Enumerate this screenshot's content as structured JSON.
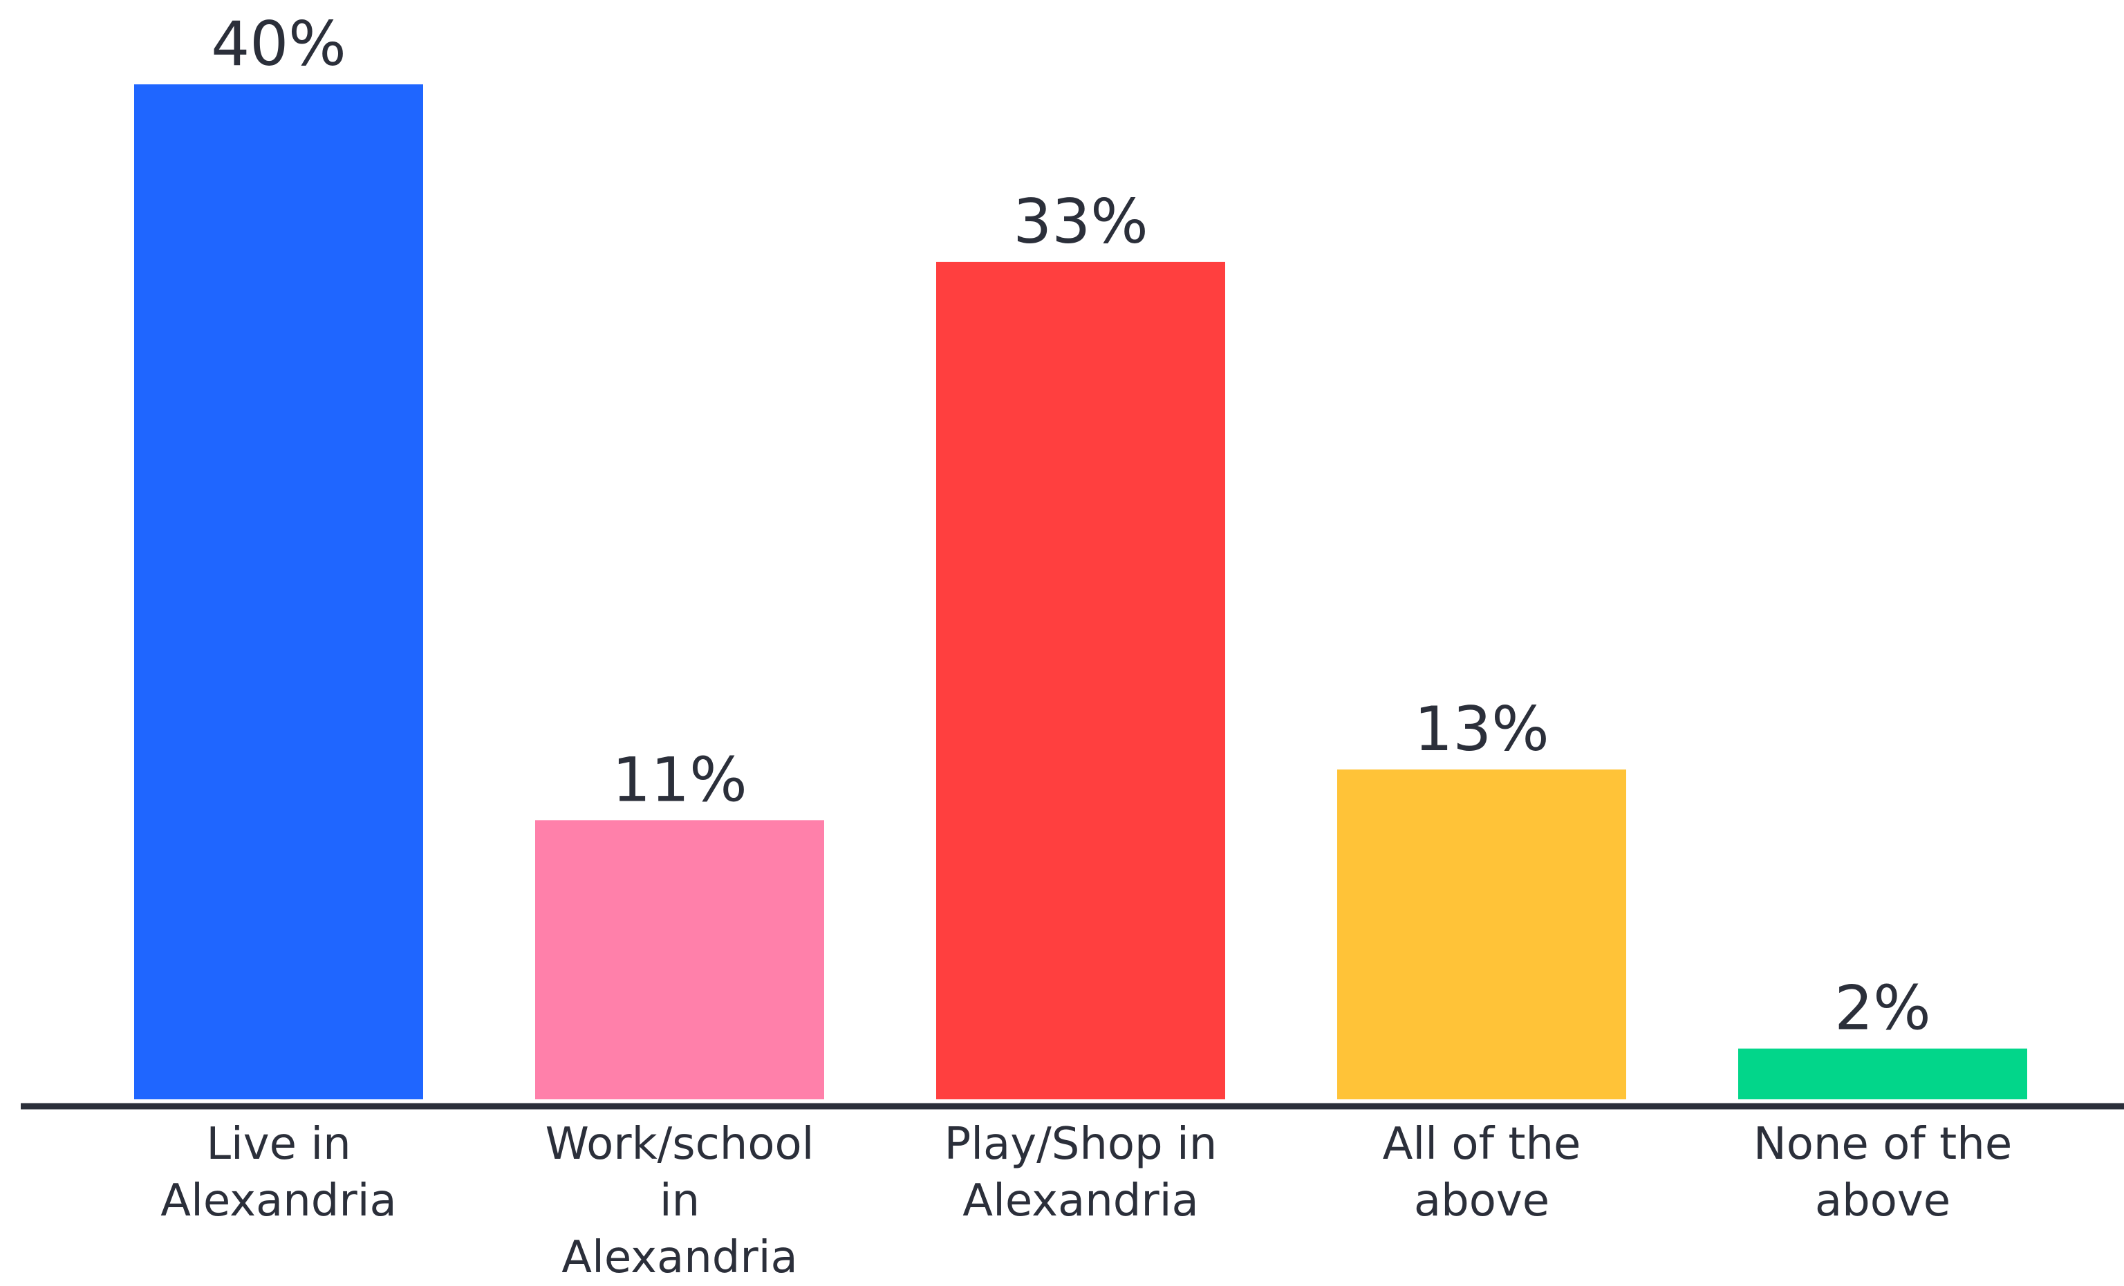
{
  "chart_data": {
    "type": "bar",
    "title": "",
    "xlabel": "",
    "ylabel": "",
    "ylim": [
      0,
      40
    ],
    "grid": false,
    "legend": "none",
    "categories": [
      "Live in Alexandria",
      "Work/school in Alexandria",
      "Play/Shop in Alexandria",
      "All of the above",
      "None of the above"
    ],
    "category_lines": [
      [
        "Live in",
        "Alexandria"
      ],
      [
        "Work/school",
        "in",
        "Alexandria"
      ],
      [
        "Play/Shop in",
        "Alexandria"
      ],
      [
        "All of the",
        "above"
      ],
      [
        "None of the",
        "above"
      ]
    ],
    "values": [
      40,
      11,
      33,
      13,
      2
    ],
    "value_labels": [
      "40%",
      "11%",
      "33%",
      "13%",
      "2%"
    ],
    "colors": [
      "#1f66ff",
      "#ff80aa",
      "#ff3f3f",
      "#ffc338",
      "#02d68a"
    ],
    "axis_color": "#2b2f3a",
    "text_color": "#2b2f3a"
  }
}
